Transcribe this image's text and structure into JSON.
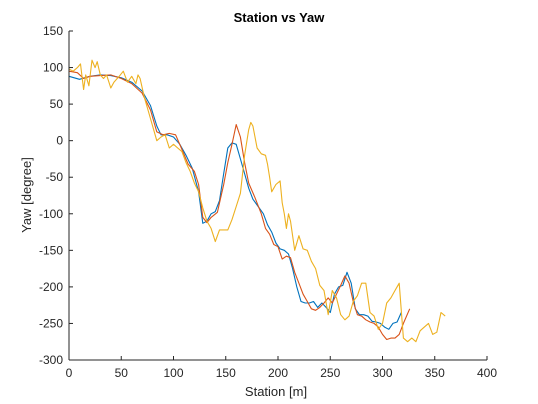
{
  "chart_data": {
    "type": "line",
    "title": "Station vs Yaw",
    "xlabel": "Station [m]",
    "ylabel": "Yaw [degree]",
    "xlim": [
      0,
      400
    ],
    "ylim": [
      -300,
      150
    ],
    "xticks": [
      0,
      50,
      100,
      150,
      200,
      250,
      300,
      350,
      400
    ],
    "yticks": [
      150,
      100,
      50,
      0,
      -50,
      -100,
      -150,
      -200,
      -250,
      -300
    ],
    "grid": false,
    "legend": "none",
    "series": [
      {
        "color": "#0072BD",
        "points": [
          [
            0,
            88
          ],
          [
            10,
            84
          ],
          [
            20,
            88
          ],
          [
            30,
            90
          ],
          [
            40,
            89
          ],
          [
            50,
            86
          ],
          [
            60,
            80
          ],
          [
            70,
            68
          ],
          [
            78,
            48
          ],
          [
            84,
            20
          ],
          [
            88,
            8
          ],
          [
            94,
            8
          ],
          [
            100,
            5
          ],
          [
            106,
            -5
          ],
          [
            112,
            -20
          ],
          [
            118,
            -38
          ],
          [
            124,
            -70
          ],
          [
            128,
            -113
          ],
          [
            132,
            -110
          ],
          [
            136,
            -100
          ],
          [
            140,
            -97
          ],
          [
            144,
            -82
          ],
          [
            148,
            -45
          ],
          [
            152,
            -10
          ],
          [
            156,
            -3
          ],
          [
            160,
            -5
          ],
          [
            164,
            -25
          ],
          [
            168,
            -45
          ],
          [
            172,
            -65
          ],
          [
            176,
            -80
          ],
          [
            180,
            -88
          ],
          [
            186,
            -100
          ],
          [
            190,
            -115
          ],
          [
            194,
            -125
          ],
          [
            198,
            -140
          ],
          [
            202,
            -148
          ],
          [
            206,
            -150
          ],
          [
            210,
            -155
          ],
          [
            214,
            -175
          ],
          [
            218,
            -200
          ],
          [
            222,
            -220
          ],
          [
            226,
            -222
          ],
          [
            230,
            -222
          ],
          [
            234,
            -220
          ],
          [
            238,
            -228
          ],
          [
            242,
            -222
          ],
          [
            246,
            -228
          ],
          [
            250,
            -235
          ],
          [
            254,
            -210
          ],
          [
            258,
            -200
          ],
          [
            262,
            -198
          ],
          [
            266,
            -180
          ],
          [
            270,
            -195
          ],
          [
            274,
            -230
          ],
          [
            278,
            -238
          ],
          [
            282,
            -238
          ],
          [
            286,
            -240
          ],
          [
            290,
            -247
          ],
          [
            294,
            -248
          ],
          [
            298,
            -250
          ],
          [
            302,
            -255
          ],
          [
            306,
            -258
          ],
          [
            310,
            -250
          ],
          [
            314,
            -248
          ],
          [
            318,
            -235
          ]
        ]
      },
      {
        "color": "#D95319",
        "points": [
          [
            0,
            95
          ],
          [
            8,
            93
          ],
          [
            14,
            85
          ],
          [
            20,
            88
          ],
          [
            30,
            89
          ],
          [
            40,
            90
          ],
          [
            50,
            85
          ],
          [
            60,
            78
          ],
          [
            70,
            65
          ],
          [
            78,
            42
          ],
          [
            84,
            12
          ],
          [
            90,
            8
          ],
          [
            96,
            10
          ],
          [
            102,
            8
          ],
          [
            108,
            -12
          ],
          [
            114,
            -32
          ],
          [
            120,
            -42
          ],
          [
            124,
            -60
          ],
          [
            128,
            -105
          ],
          [
            132,
            -112
          ],
          [
            136,
            -105
          ],
          [
            142,
            -98
          ],
          [
            148,
            -60
          ],
          [
            152,
            -30
          ],
          [
            156,
            -5
          ],
          [
            160,
            22
          ],
          [
            164,
            5
          ],
          [
            168,
            -30
          ],
          [
            172,
            -58
          ],
          [
            178,
            -78
          ],
          [
            184,
            -100
          ],
          [
            188,
            -120
          ],
          [
            192,
            -128
          ],
          [
            196,
            -142
          ],
          [
            200,
            -145
          ],
          [
            204,
            -162
          ],
          [
            208,
            -158
          ],
          [
            212,
            -160
          ],
          [
            216,
            -180
          ],
          [
            220,
            -195
          ],
          [
            224,
            -210
          ],
          [
            228,
            -220
          ],
          [
            232,
            -230
          ],
          [
            236,
            -232
          ],
          [
            240,
            -228
          ],
          [
            244,
            -222
          ],
          [
            248,
            -215
          ],
          [
            252,
            -222
          ],
          [
            256,
            -210
          ],
          [
            260,
            -198
          ],
          [
            264,
            -185
          ],
          [
            268,
            -195
          ],
          [
            272,
            -220
          ],
          [
            276,
            -238
          ],
          [
            280,
            -240
          ],
          [
            284,
            -245
          ],
          [
            288,
            -248
          ],
          [
            292,
            -250
          ],
          [
            296,
            -255
          ],
          [
            300,
            -265
          ],
          [
            304,
            -272
          ],
          [
            308,
            -270
          ],
          [
            312,
            -270
          ],
          [
            316,
            -265
          ],
          [
            320,
            -250
          ],
          [
            326,
            -230
          ]
        ]
      },
      {
        "color": "#EDB120",
        "points": [
          [
            0,
            98
          ],
          [
            4,
            95
          ],
          [
            8,
            100
          ],
          [
            11,
            105
          ],
          [
            14,
            70
          ],
          [
            16,
            90
          ],
          [
            19,
            75
          ],
          [
            22,
            110
          ],
          [
            25,
            100
          ],
          [
            27,
            108
          ],
          [
            30,
            90
          ],
          [
            33,
            85
          ],
          [
            36,
            90
          ],
          [
            40,
            72
          ],
          [
            43,
            80
          ],
          [
            48,
            88
          ],
          [
            52,
            95
          ],
          [
            56,
            80
          ],
          [
            60,
            88
          ],
          [
            64,
            78
          ],
          [
            66,
            90
          ],
          [
            68,
            85
          ],
          [
            72,
            60
          ],
          [
            76,
            40
          ],
          [
            80,
            20
          ],
          [
            84,
            0
          ],
          [
            88,
            5
          ],
          [
            92,
            8
          ],
          [
            96,
            -10
          ],
          [
            100,
            -5
          ],
          [
            104,
            -10
          ],
          [
            108,
            -15
          ],
          [
            112,
            -30
          ],
          [
            116,
            -42
          ],
          [
            120,
            -58
          ],
          [
            124,
            -70
          ],
          [
            128,
            -92
          ],
          [
            132,
            -110
          ],
          [
            136,
            -120
          ],
          [
            140,
            -138
          ],
          [
            144,
            -122
          ],
          [
            148,
            -122
          ],
          [
            152,
            -122
          ],
          [
            156,
            -108
          ],
          [
            160,
            -90
          ],
          [
            164,
            -72
          ],
          [
            168,
            -20
          ],
          [
            172,
            15
          ],
          [
            174,
            25
          ],
          [
            176,
            20
          ],
          [
            180,
            -10
          ],
          [
            184,
            -18
          ],
          [
            188,
            -20
          ],
          [
            190,
            -32
          ],
          [
            192,
            -50
          ],
          [
            194,
            -70
          ],
          [
            198,
            -60
          ],
          [
            202,
            -55
          ],
          [
            204,
            -85
          ],
          [
            206,
            -100
          ],
          [
            208,
            -120
          ],
          [
            210,
            -100
          ],
          [
            212,
            -110
          ],
          [
            216,
            -150
          ],
          [
            220,
            -130
          ],
          [
            224,
            -148
          ],
          [
            228,
            -150
          ],
          [
            232,
            -165
          ],
          [
            236,
            -175
          ],
          [
            240,
            -198
          ],
          [
            244,
            -205
          ],
          [
            248,
            -238
          ],
          [
            252,
            -205
          ],
          [
            256,
            -215
          ],
          [
            260,
            -238
          ],
          [
            264,
            -245
          ],
          [
            268,
            -240
          ],
          [
            272,
            -220
          ],
          [
            276,
            -212
          ],
          [
            280,
            -195
          ],
          [
            284,
            -195
          ],
          [
            288,
            -235
          ],
          [
            292,
            -240
          ],
          [
            296,
            -258
          ],
          [
            300,
            -250
          ],
          [
            304,
            -222
          ],
          [
            308,
            -215
          ],
          [
            312,
            -205
          ],
          [
            316,
            -195
          ],
          [
            320,
            -270
          ],
          [
            324,
            -275
          ],
          [
            328,
            -270
          ],
          [
            332,
            -275
          ],
          [
            336,
            -260
          ],
          [
            340,
            -255
          ],
          [
            344,
            -250
          ],
          [
            348,
            -265
          ],
          [
            352,
            -262
          ],
          [
            356,
            -235
          ],
          [
            360,
            -240
          ]
        ]
      }
    ]
  }
}
